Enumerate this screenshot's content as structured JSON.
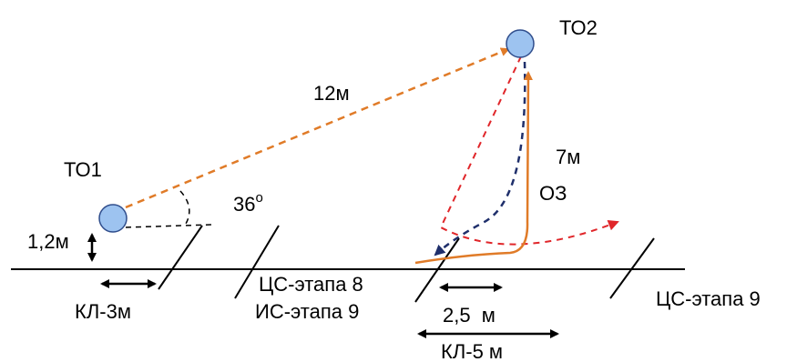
{
  "colors": {
    "node_fill": "#9DC3F0",
    "node_stroke": "#2F4D8C",
    "orange": "#E07B28",
    "red": "#E0262A",
    "navy": "#1F2F6B",
    "black": "#000000"
  },
  "labels": {
    "to1": "ТО1",
    "to2": "ТО2",
    "dist_12m": "12м",
    "angle_36": "36",
    "degree": "o",
    "height_1_2m": "1,2м",
    "dist_7m": "7м",
    "oz": "ОЗ",
    "kl_3m": "КЛ-3м",
    "cs_stage_8": "ЦС-этапа 8",
    "is_stage_9": "ИС-этапа 9",
    "dist_2_5m": "2,5  м",
    "kl_5m": "КЛ-5 м",
    "cs_stage_9": "ЦС-этапа 9"
  }
}
